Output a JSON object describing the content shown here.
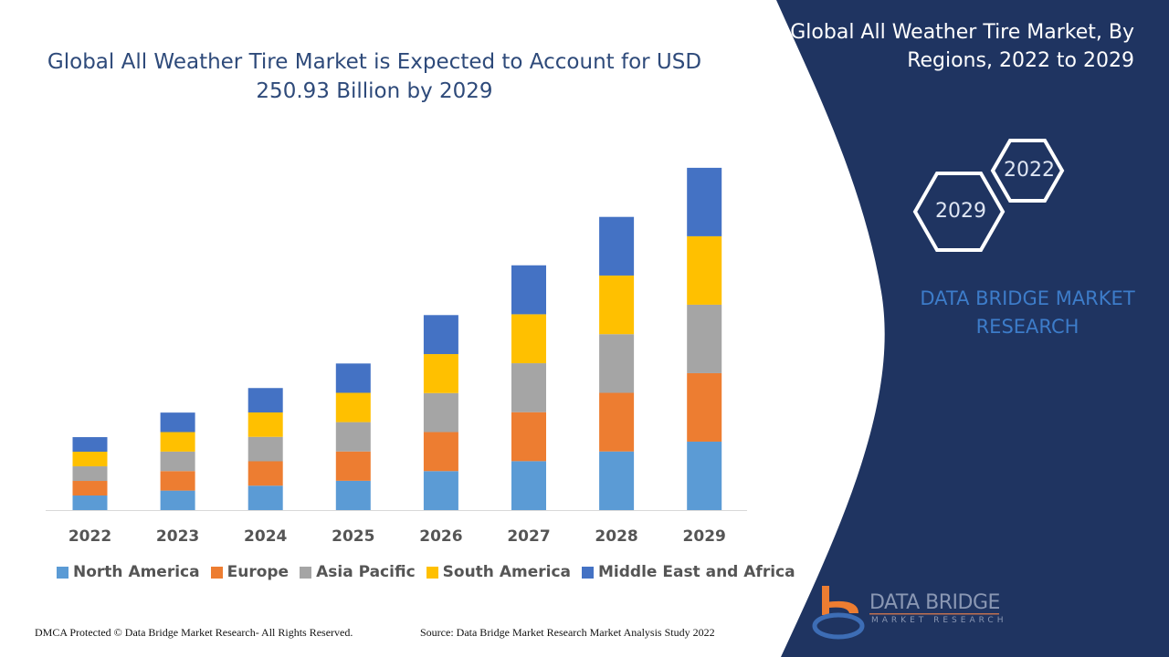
{
  "title": "Global All Weather Tire Market is Expected to Account for USD 250.93 Billion by 2029",
  "side_panel": {
    "title": "Global All Weather Tire Market, By Regions, 2022 to 2029",
    "hex_years": [
      "2022",
      "2029"
    ],
    "brand": "DATA BRIDGE MARKET RESEARCH"
  },
  "footer": {
    "left": "DMCA Protected © Data Bridge Market Research- All Rights Reserved.",
    "right": "Source: Data Bridge Market Research Market Analysis Study 2022"
  },
  "logo": {
    "name": "DATA BRIDGE",
    "sub": "MARKET RESEARCH"
  },
  "colors": {
    "panel": "#1f3461",
    "North America": "#5b9bd5",
    "Europe": "#ed7d31",
    "Asia Pacific": "#a5a5a5",
    "South America": "#ffc000",
    "Middle East and Africa": "#4472c4"
  },
  "chart_data": {
    "type": "bar",
    "stacked": true,
    "title": "Global All Weather Tire Market is Expected to Account for USD 250.93 Billion by 2029",
    "xlabel": "",
    "ylabel": "",
    "ylim": [
      0,
      260
    ],
    "grid": false,
    "y_axis_visible": false,
    "legend": "bottom",
    "categories": [
      "2022",
      "2023",
      "2024",
      "2025",
      "2026",
      "2027",
      "2028",
      "2029"
    ],
    "series": [
      {
        "name": "North America",
        "color": "#5b9bd5",
        "values": [
          10.7,
          14.3,
          17.9,
          21.5,
          28.6,
          35.9,
          43.0,
          50.2
        ]
      },
      {
        "name": "Europe",
        "color": "#ed7d31",
        "values": [
          10.7,
          14.3,
          17.9,
          21.5,
          28.6,
          35.9,
          43.0,
          50.2
        ]
      },
      {
        "name": "Asia Pacific",
        "color": "#a5a5a5",
        "values": [
          10.7,
          14.3,
          17.9,
          21.5,
          28.6,
          35.9,
          43.0,
          50.2
        ]
      },
      {
        "name": "South America",
        "color": "#ffc000",
        "values": [
          10.7,
          14.3,
          17.9,
          21.5,
          28.6,
          35.9,
          43.0,
          50.2
        ]
      },
      {
        "name": "Middle East and Africa",
        "color": "#4472c4",
        "values": [
          10.7,
          14.3,
          17.9,
          21.5,
          28.6,
          35.9,
          43.0,
          50.2
        ]
      }
    ]
  }
}
